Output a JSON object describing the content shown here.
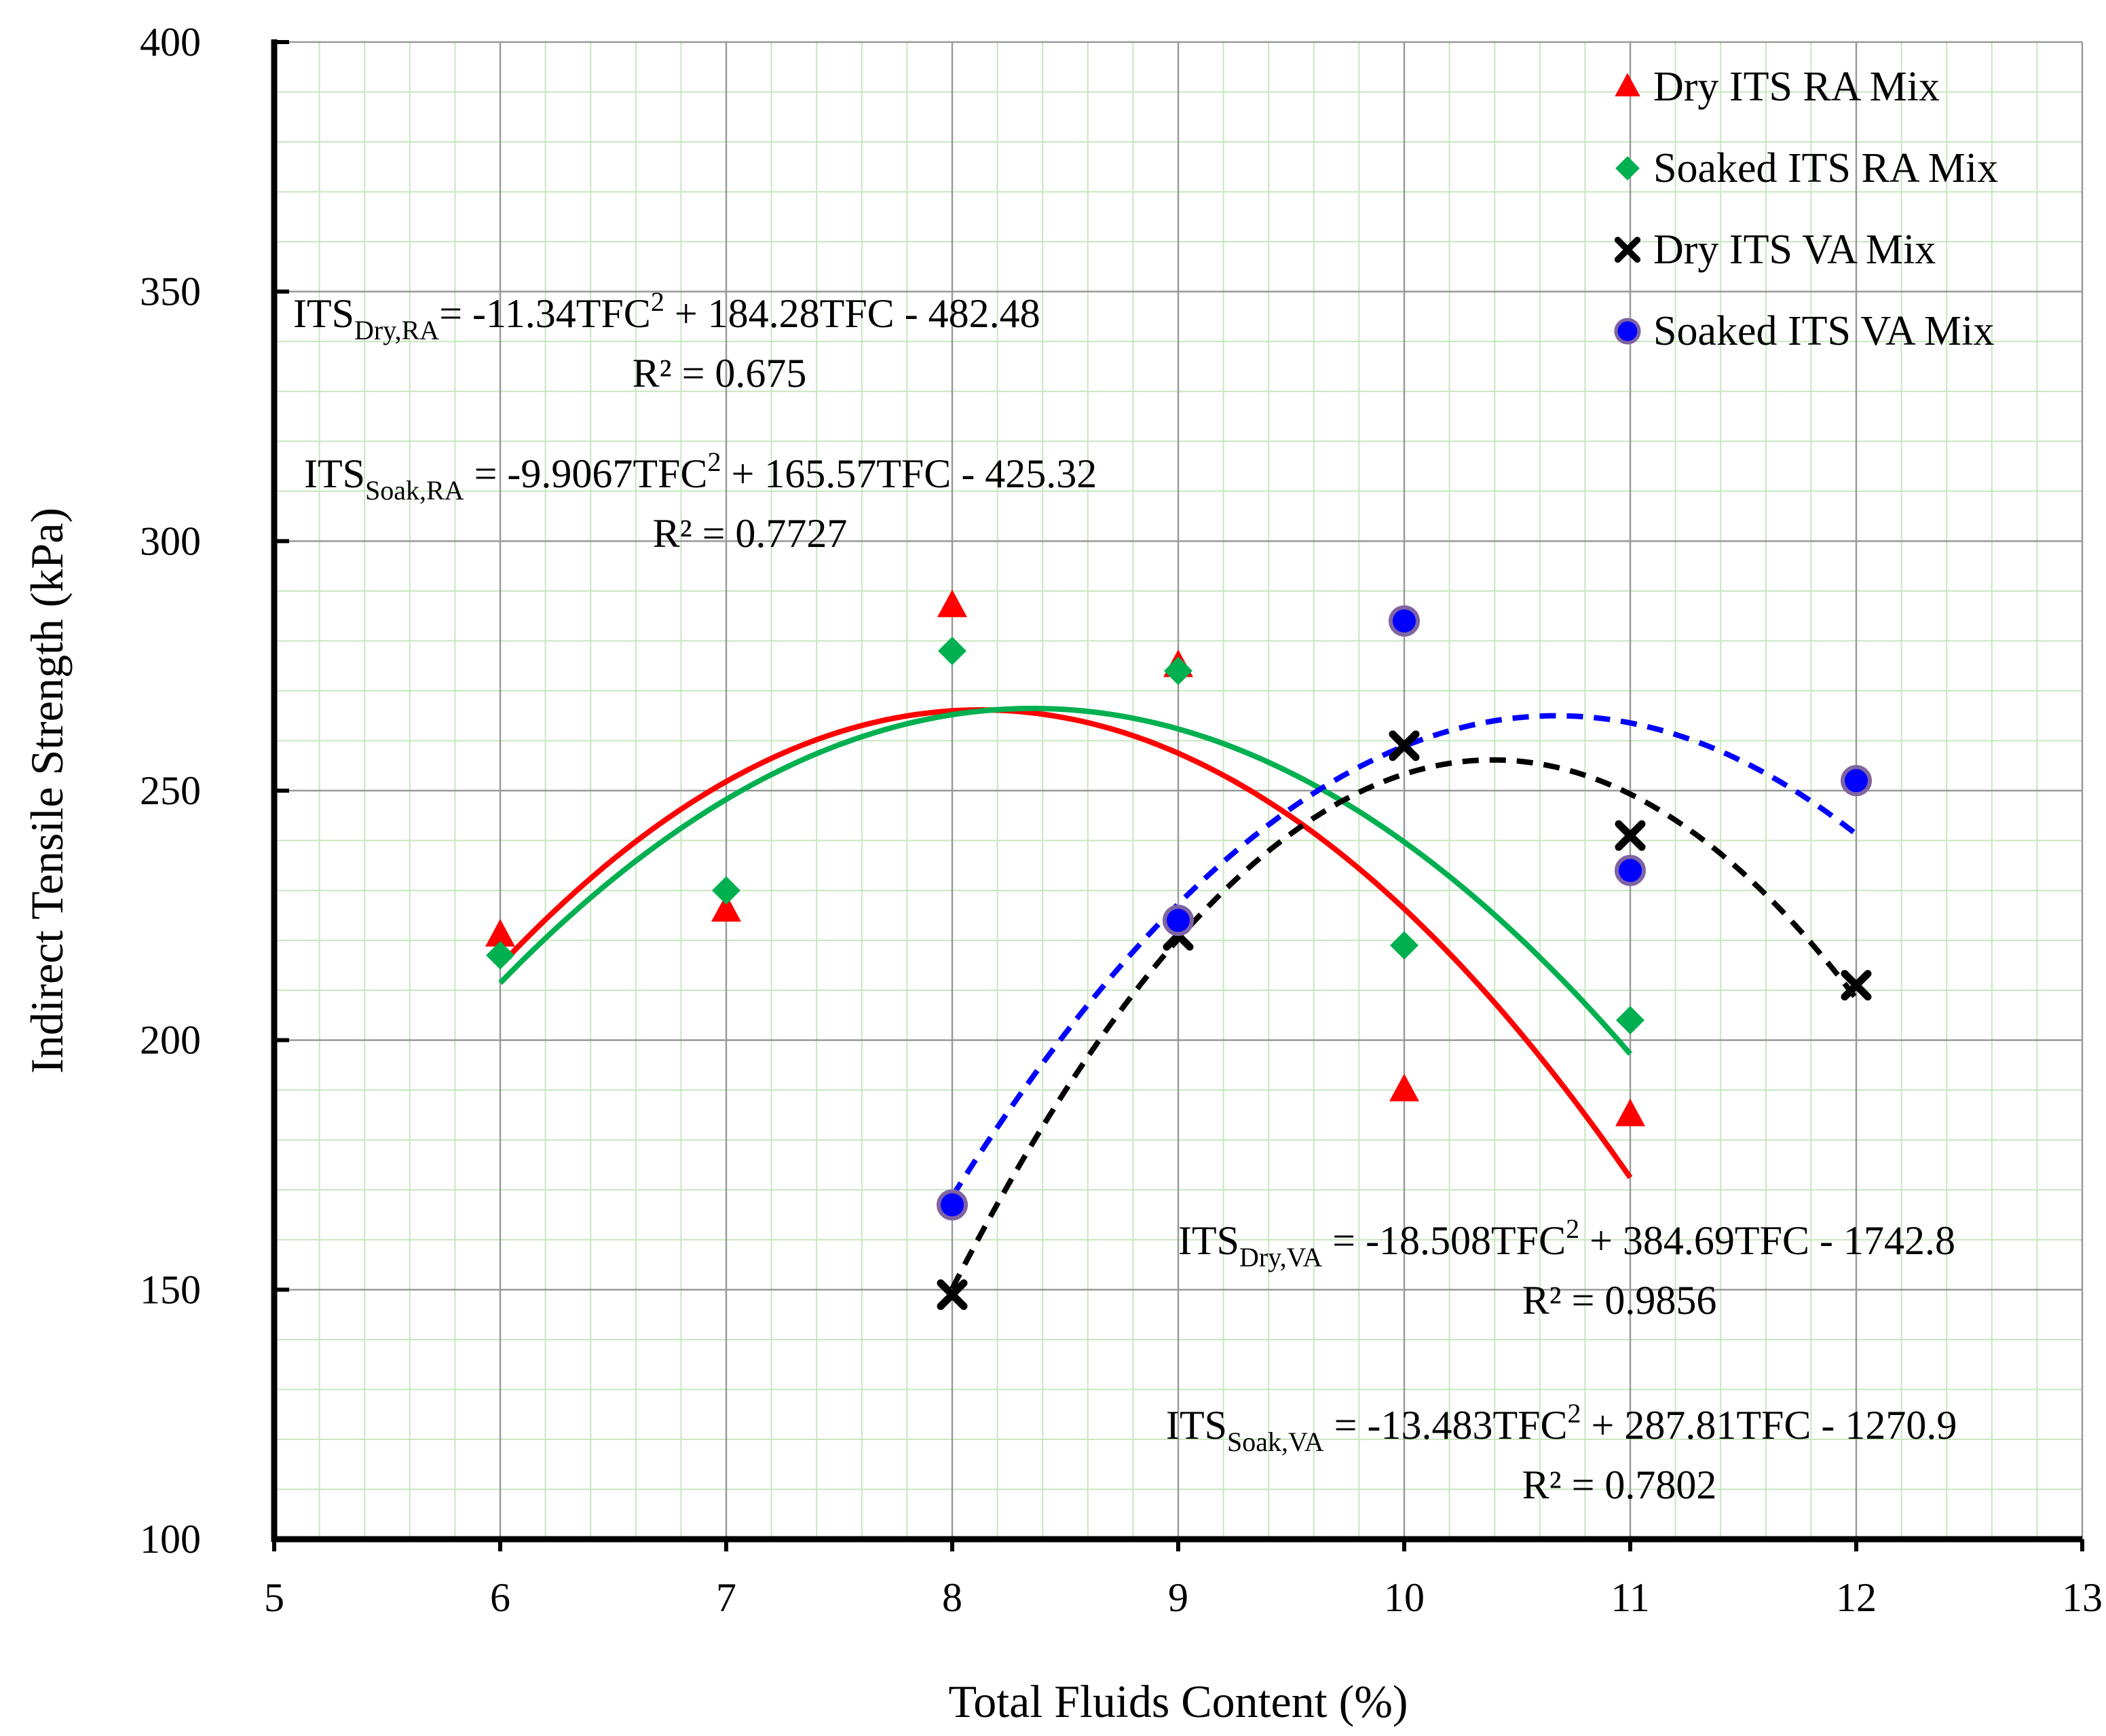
{
  "chart_data": {
    "type": "scatter",
    "title": "",
    "xlabel": "Total Fluids Content (%)",
    "ylabel": "Indirect Tensile Strength (kPa)",
    "xlim": [
      5,
      13
    ],
    "ylim": [
      100,
      400
    ],
    "xticks": [
      5,
      6,
      7,
      8,
      9,
      10,
      11,
      12,
      13
    ],
    "yticks": [
      100,
      150,
      200,
      250,
      300,
      350,
      400
    ],
    "grid": true,
    "legend_position": "top-right",
    "series": [
      {
        "name": "Dry ITS RA Mix",
        "marker": "triangle",
        "color": "#ff0000",
        "x": [
          6,
          7,
          8,
          9,
          10,
          11
        ],
        "y": [
          221,
          226,
          287,
          275,
          190,
          185
        ],
        "fit": {
          "a": -11.34,
          "b": 184.28,
          "c": -482.48,
          "x_range": [
            6,
            11
          ],
          "style": "solid"
        }
      },
      {
        "name": "Soaked ITS RA Mix",
        "marker": "diamond",
        "color": "#00b050",
        "x": [
          6,
          7,
          8,
          9,
          10,
          11
        ],
        "y": [
          217,
          230,
          278,
          274,
          219,
          204
        ],
        "fit": {
          "a": -9.9067,
          "b": 165.57,
          "c": -425.32,
          "x_range": [
            6,
            11
          ],
          "style": "solid"
        }
      },
      {
        "name": "Dry ITS VA Mix",
        "marker": "x",
        "color": "#000000",
        "x": [
          8,
          9,
          10,
          11,
          12
        ],
        "y": [
          149,
          221,
          259,
          241,
          211
        ],
        "fit": {
          "a": -18.508,
          "b": 384.69,
          "c": -1742.8,
          "x_range": [
            8,
            12
          ],
          "style": "dashed"
        }
      },
      {
        "name": "Soaked ITS VA Mix",
        "marker": "circle",
        "color": "#0000ff",
        "x": [
          8,
          9,
          10,
          11,
          12
        ],
        "y": [
          167,
          224,
          284,
          234,
          252
        ],
        "fit": {
          "a": -13.483,
          "b": 287.81,
          "c": -1270.9,
          "x_range": [
            8,
            12
          ],
          "style": "dashed"
        }
      }
    ],
    "annotations": [
      {
        "base": "ITS",
        "sub": "Dry,RA",
        "rest": "= -11.34TFC",
        "sup": "2",
        "tail": " + 184.28TFC - 482.48",
        "r2": "R² = 0.675"
      },
      {
        "base": "ITS",
        "sub": "Soak,RA",
        "rest": " = -9.9067TFC",
        "sup": "2",
        "tail": " + 165.57TFC - 425.32",
        "r2": "R² = 0.7727"
      },
      {
        "base": "ITS",
        "sub": "Dry,VA",
        "rest": " = -18.508TFC",
        "sup": "2",
        "tail": " + 384.69TFC - 1742.8",
        "r2": "R² = 0.9856"
      },
      {
        "base": "ITS",
        "sub": "Soak,VA",
        "rest": " = -13.483TFC",
        "sup": "2",
        "tail": " + 287.81TFC - 1270.9",
        "r2": "R² = 0.7802"
      }
    ]
  }
}
